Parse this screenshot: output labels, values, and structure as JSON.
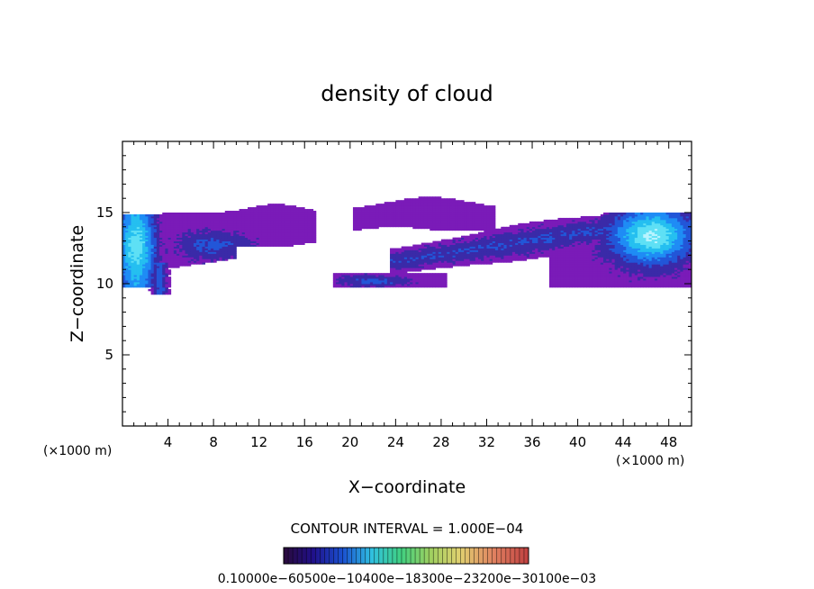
{
  "chart_data": {
    "type": "heatmap",
    "title": "density of cloud",
    "xlabel": "X−coordinate",
    "ylabel": "Z−coordinate",
    "x_unit_left": "(×1000 m)",
    "x_unit_right": "(×1000 m)",
    "xlim": [
      0,
      50
    ],
    "ylim": [
      0,
      20
    ],
    "x_ticks": [
      "4",
      "8",
      "12",
      "16",
      "20",
      "24",
      "28",
      "32",
      "36",
      "40",
      "44",
      "48"
    ],
    "x_tick_values": [
      4,
      8,
      12,
      16,
      20,
      24,
      28,
      32,
      36,
      40,
      44,
      48
    ],
    "y_ticks": [
      "5",
      "10",
      "15"
    ],
    "y_tick_values": [
      5,
      10,
      15
    ],
    "contour_interval": "CONTOUR INTERVAL = 1.000E−04",
    "colorbar_labels_text": "0.10000e−60500e−10400e−18300e−23200e−30100e−03",
    "colormap": [
      "#1a1a2e",
      "#2a0a5a",
      "#3b1a9a",
      "#2244cc",
      "#1f77ff",
      "#22c8ff",
      "#35e0d0",
      "#5fd35f",
      "#a8e060",
      "#e0e070",
      "#e8b060",
      "#e07050",
      "#c84040",
      "#ffffff"
    ],
    "fill_color_low": "#7a1bb8",
    "regions": [
      {
        "name": "left-column",
        "x": [
          0,
          4
        ],
        "z": [
          9.2,
          15.0
        ],
        "max_level": 0.9
      },
      {
        "name": "left-anvil",
        "x": [
          3.5,
          17
        ],
        "z": [
          11.0,
          15.6
        ],
        "max_level": 0.35
      },
      {
        "name": "middle-lower-band",
        "x": [
          18.5,
          28.5
        ],
        "z": [
          9.8,
          10.8
        ],
        "max_level": 0.3
      },
      {
        "name": "middle-upper-layer",
        "x": [
          20,
          33
        ],
        "z": [
          13.5,
          16.1
        ],
        "max_level": 0.1
      },
      {
        "name": "right-slanted-layer",
        "x": [
          24,
          45
        ],
        "z": [
          10.8,
          14.6
        ],
        "max_level": 0.25
      },
      {
        "name": "right-convective-cell",
        "x": [
          37.5,
          50
        ],
        "z": [
          9.7,
          15.2
        ],
        "max_level": 0.8
      }
    ]
  }
}
